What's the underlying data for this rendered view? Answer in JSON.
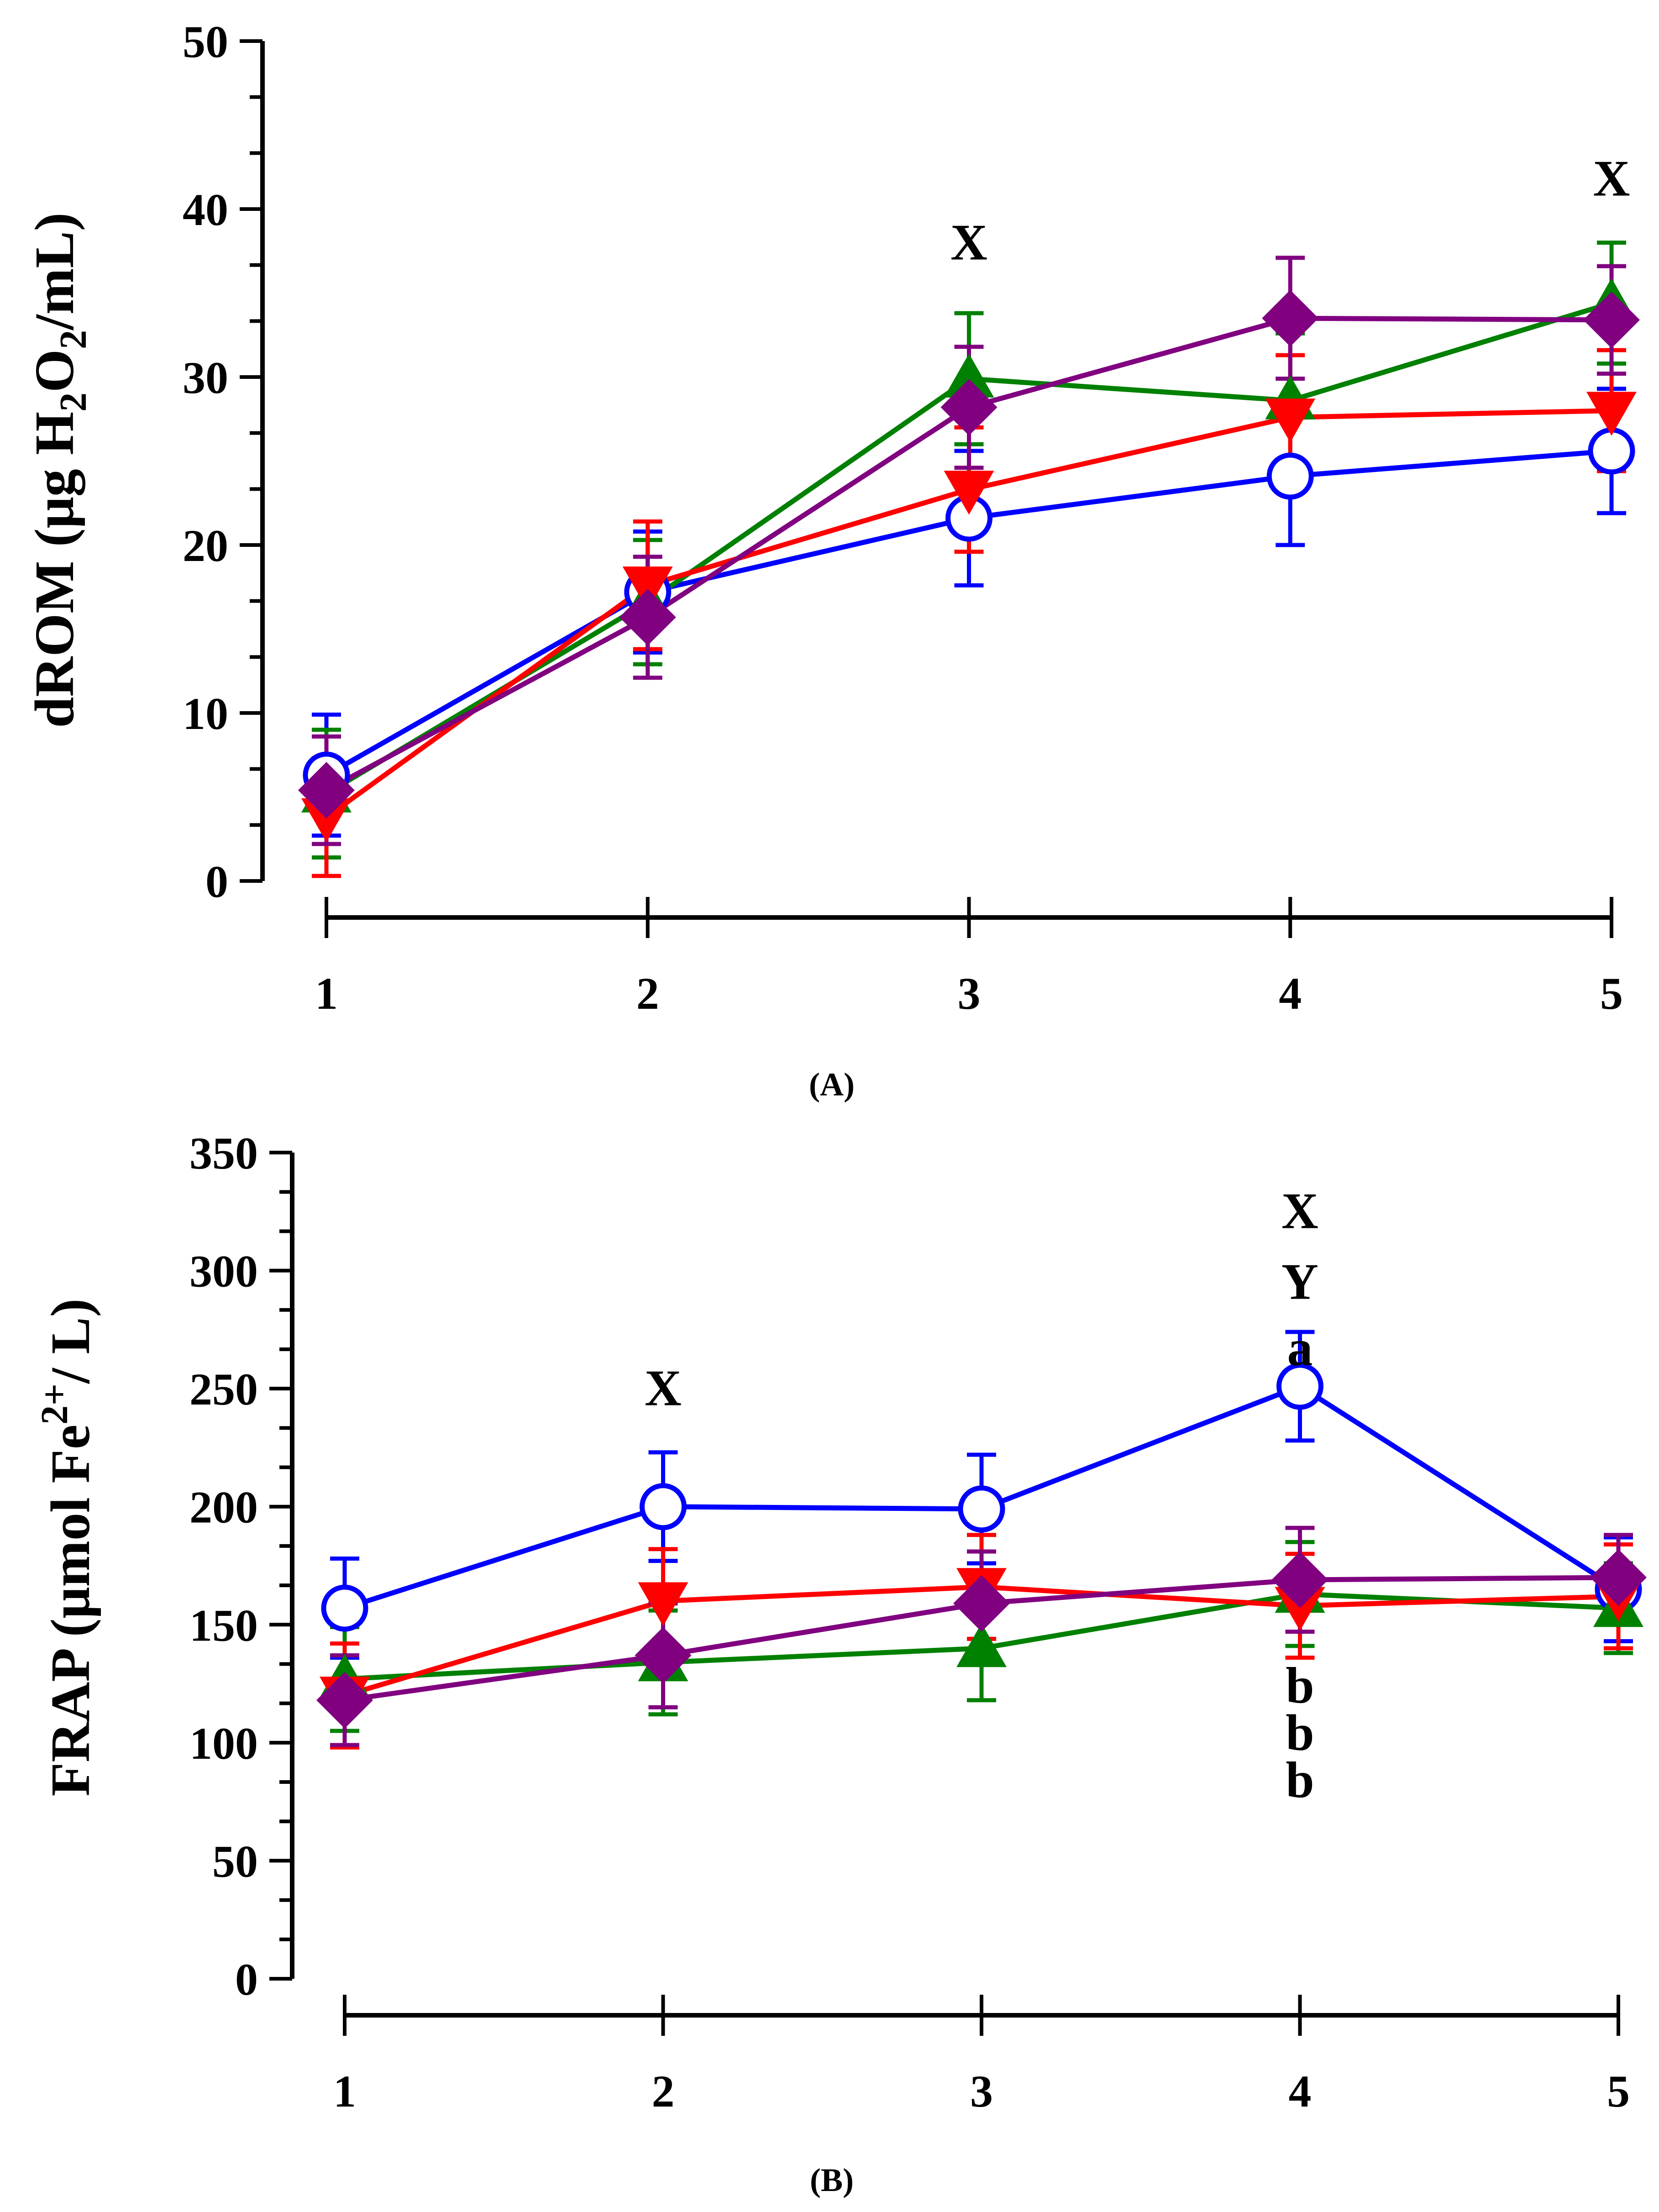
{
  "chart_data": [
    {
      "id": "A",
      "type": "line",
      "panel_label": "(A)",
      "ylabel_parts": [
        "dROM (μg H",
        "2",
        "O",
        "2",
        "/mL)"
      ],
      "categories": [
        "1",
        "2",
        "3",
        "4",
        "5"
      ],
      "ylim": [
        0,
        50
      ],
      "y_ticks": [
        0,
        10,
        20,
        30,
        40,
        50
      ],
      "y_tick_labels": [
        "0",
        "10",
        "20",
        "30",
        "40",
        "50"
      ],
      "grid": false,
      "series": [
        {
          "name": "blue-open-circle",
          "color": "#0000FF",
          "marker": "circle-open",
          "values": [
            6.3,
            17.2,
            21.6,
            24.1,
            25.6
          ],
          "err": [
            3.6,
            3.6,
            4.0,
            4.1,
            3.7
          ]
        },
        {
          "name": "green-triangle-up",
          "color": "#008000",
          "marker": "triangle-up",
          "values": [
            5.2,
            16.6,
            29.9,
            28.6,
            34.4
          ],
          "err": [
            3.8,
            3.7,
            3.9,
            4.0,
            3.6
          ]
        },
        {
          "name": "red-triangle-down",
          "color": "#FF0000",
          "marker": "triangle-down",
          "values": [
            3.8,
            17.6,
            23.3,
            27.6,
            28.0
          ],
          "err": [
            3.5,
            3.8,
            3.7,
            3.7,
            3.6
          ]
        },
        {
          "name": "purple-diamond",
          "color": "#800080",
          "marker": "diamond",
          "values": [
            5.4,
            15.7,
            28.2,
            33.5,
            33.4
          ],
          "err": [
            3.2,
            3.6,
            3.6,
            3.6,
            3.2
          ]
        }
      ],
      "annotations": [
        {
          "x": "3",
          "y": 37.0,
          "text": "X"
        },
        {
          "x": "5",
          "y": 40.8,
          "text": "X"
        }
      ]
    },
    {
      "id": "B",
      "type": "line",
      "panel_label": "(B)",
      "ylabel_parts": [
        "FRAP (μmol Fe",
        "2+",
        "/ L)"
      ],
      "categories": [
        "1",
        "2",
        "3",
        "4",
        "5"
      ],
      "ylim": [
        0,
        350
      ],
      "y_ticks": [
        0,
        50,
        100,
        150,
        200,
        250,
        300,
        350
      ],
      "y_tick_labels": [
        "0",
        "50",
        "100",
        "150",
        "200",
        "250",
        "300",
        "350"
      ],
      "grid": false,
      "series": [
        {
          "name": "blue-open-circle",
          "color": "#0000FF",
          "marker": "circle-open",
          "values": [
            157,
            200,
            199,
            251,
            165
          ],
          "err": [
            21,
            23,
            23,
            23,
            22
          ]
        },
        {
          "name": "green-triangle-up",
          "color": "#008000",
          "marker": "triangle-up",
          "values": [
            127,
            134,
            140,
            163,
            157
          ],
          "err": [
            22,
            22,
            22,
            22,
            19
          ]
        },
        {
          "name": "red-triangle-down",
          "color": "#FF0000",
          "marker": "triangle-down",
          "values": [
            120,
            160,
            166,
            158,
            162
          ],
          "err": [
            22,
            22,
            22,
            22,
            22
          ]
        },
        {
          "name": "purple-diamond",
          "color": "#800080",
          "marker": "diamond",
          "values": [
            118,
            137,
            159,
            169,
            170
          ],
          "err": [
            19,
            22,
            22,
            22,
            18
          ]
        }
      ],
      "annotations": [
        {
          "x": "2",
          "y": 243,
          "text": "X"
        },
        {
          "x": "4",
          "y": 318,
          "text": "X"
        },
        {
          "x": "4",
          "y": 288,
          "text": "Y"
        },
        {
          "x": "4",
          "y": 260,
          "text": "a"
        },
        {
          "x": "4",
          "y": 117,
          "text": "b"
        },
        {
          "x": "4",
          "y": 97,
          "text": "b"
        },
        {
          "x": "4",
          "y": 77,
          "text": "b"
        }
      ]
    }
  ]
}
